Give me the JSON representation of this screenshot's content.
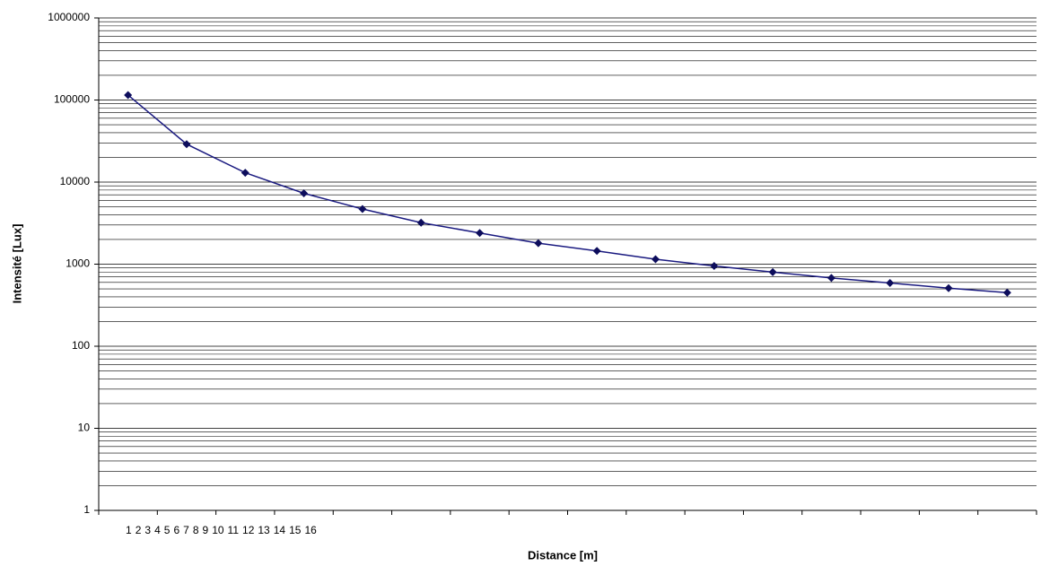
{
  "chart_data": {
    "type": "line",
    "x_label": "Distance  [m]",
    "y_label": "Intensité [Lux]",
    "categories": [
      "1",
      "2",
      "3",
      "4",
      "5",
      "6",
      "7",
      "8",
      "9",
      "10",
      "11",
      "12",
      "13",
      "14",
      "15",
      "16"
    ],
    "series": [
      {
        "name": "Intensité",
        "color": "#1a1a80",
        "values": [
          115000,
          29000,
          13000,
          7300,
          4700,
          3200,
          2400,
          1800,
          1450,
          1150,
          950,
          800,
          680,
          590,
          510,
          450
        ]
      }
    ],
    "ylim": [
      1,
      1000000
    ],
    "yticks": [
      1,
      10,
      100,
      1000,
      10000,
      100000,
      1000000
    ],
    "log_y": true,
    "grid": true,
    "minor_grid": true,
    "legend": false
  }
}
